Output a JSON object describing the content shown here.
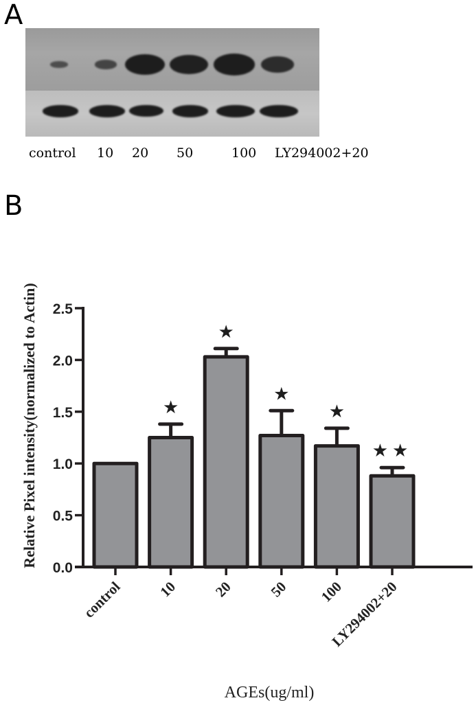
{
  "panel_a": {
    "letter": "A",
    "lane_labels": [
      "control",
      "10",
      "20",
      "50",
      "100",
      "LY294002+20"
    ],
    "target_band_intensity": [
      0.2,
      0.35,
      1.0,
      0.95,
      1.05,
      0.75
    ],
    "actin_band_intensity": [
      0.9,
      0.9,
      0.85,
      0.9,
      0.95,
      0.95
    ]
  },
  "panel_b": {
    "letter": "B"
  },
  "chart_data": {
    "type": "bar",
    "title": "",
    "xlabel": "AGEs(ug/ml)",
    "ylabel": "Relative Pixel intensity(normalized to Actin)",
    "categories": [
      "control",
      "10",
      "20",
      "50",
      "100",
      "LY294002+20"
    ],
    "values": [
      1.0,
      1.25,
      2.03,
      1.27,
      1.17,
      0.88
    ],
    "error_upper": [
      0.0,
      0.13,
      0.08,
      0.24,
      0.17,
      0.08
    ],
    "significance": [
      "",
      "★",
      "★",
      "★",
      "★",
      "★★"
    ],
    "ylim": [
      0,
      2.5
    ],
    "yticks": [
      "0.0",
      "0.5",
      "1.0",
      "1.5",
      "2.0",
      "2.5"
    ],
    "ytick_values": [
      0,
      0.5,
      1.0,
      1.5,
      2.0,
      2.5
    ],
    "grid": false,
    "legend": "none",
    "colors": {
      "bar_fill": "#939497",
      "bar_stroke": "#231f20",
      "axis": "#231f20"
    }
  }
}
